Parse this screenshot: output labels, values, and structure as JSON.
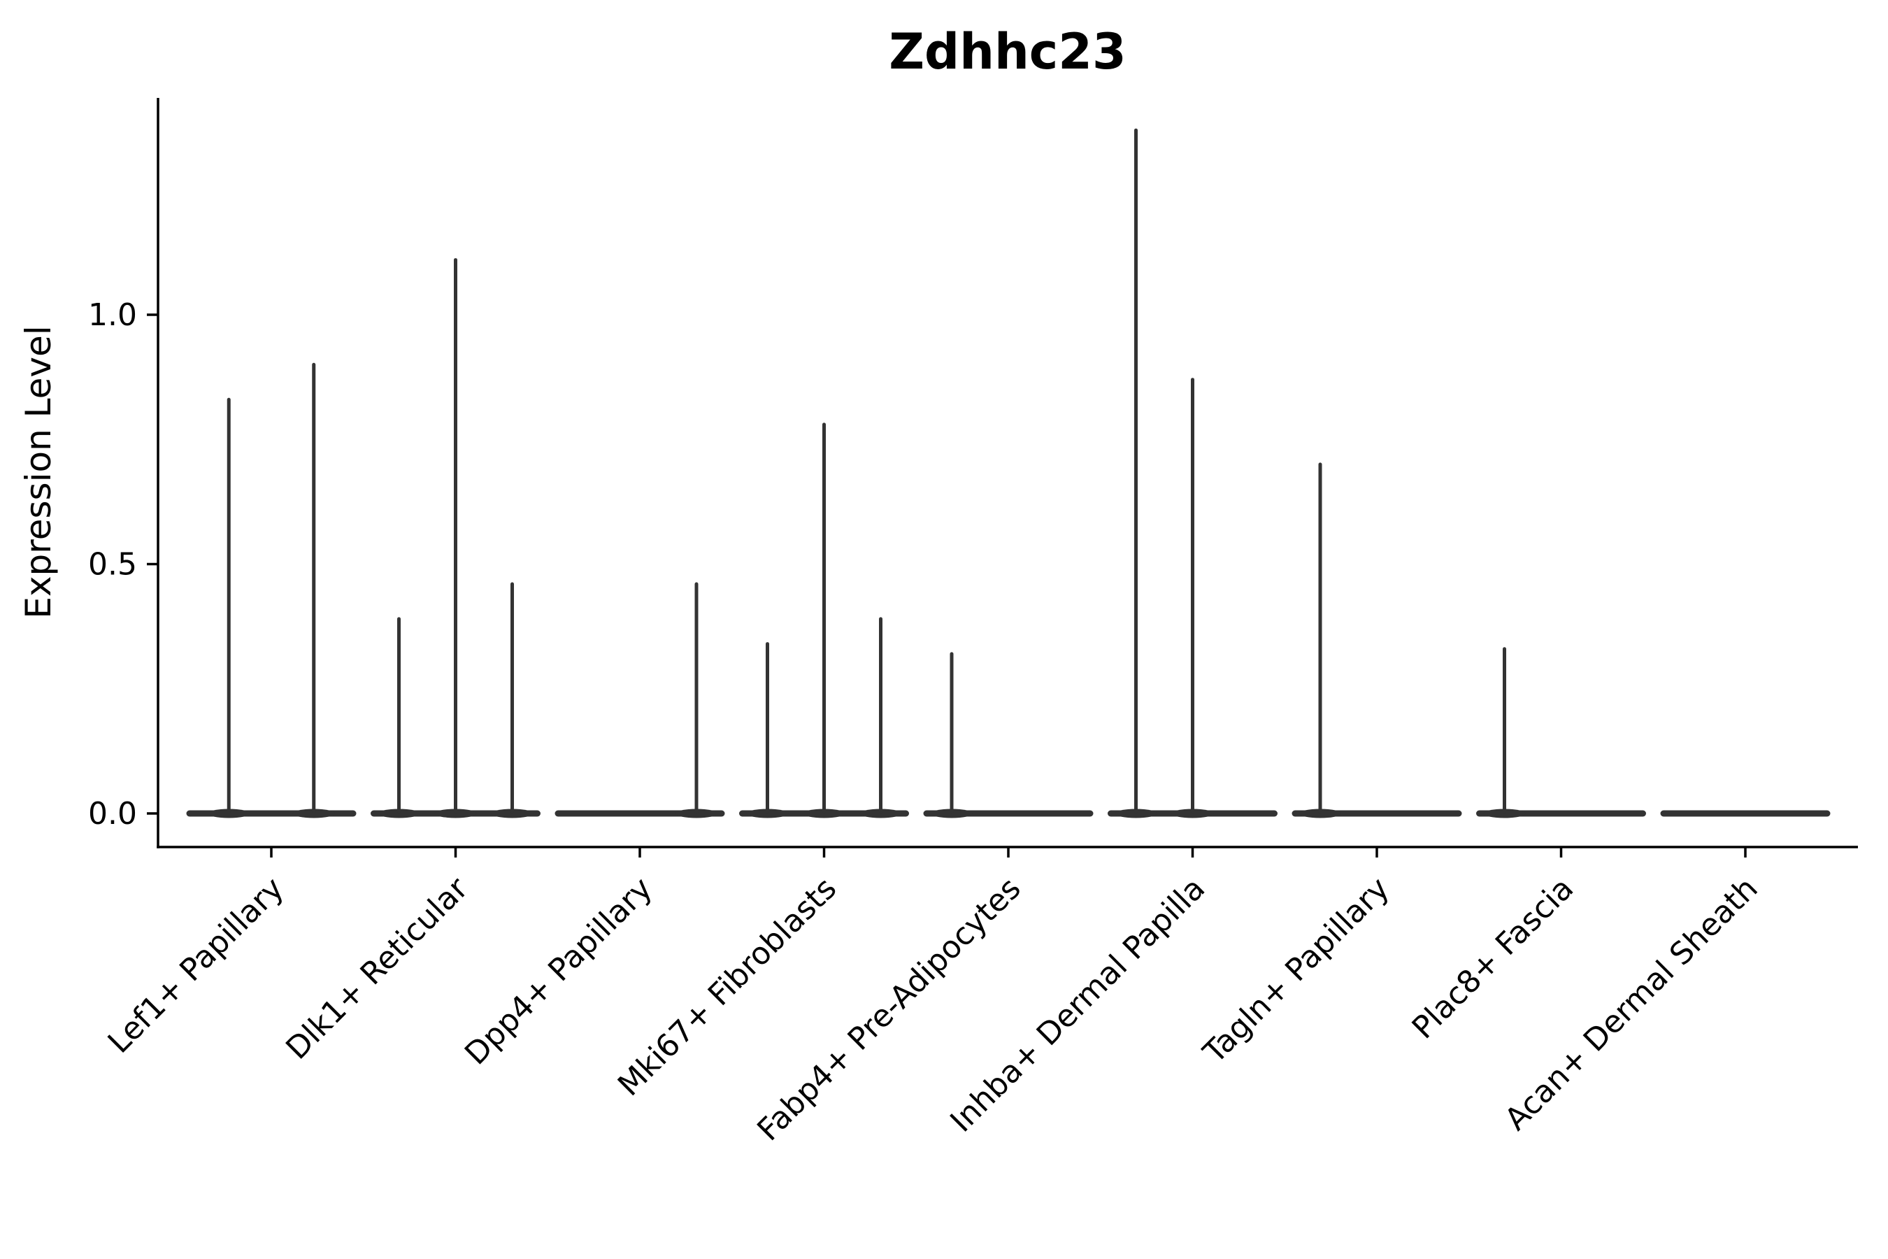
{
  "page": {
    "background": "#ffffff"
  },
  "chart_data": {
    "type": "violin",
    "title": "Zdhhc23",
    "xlabel": "",
    "ylabel": "Expression Level",
    "ytick_labels": [
      "0.0",
      "0.5",
      "1.0"
    ],
    "ytick_values": [
      0.0,
      0.5,
      1.0
    ],
    "ylim": [
      -0.07,
      1.44
    ],
    "grid": false,
    "legend": "none",
    "categories": [
      "Lef1+ Papillary",
      "Dlk1+ Reticular",
      "Dpp4+ Papillary",
      "Mki67+ Fibroblasts",
      "Fabp4+ Pre-Adipocytes",
      "Inhba+ Dermal Papilla",
      "Tagln+ Papillary",
      "Plac8+ Fascia",
      "Acan+ Dermal Sheath"
    ],
    "groups": [
      {
        "category": "Lef1+ Papillary",
        "violin_peaks": [
          0.83,
          0.9
        ]
      },
      {
        "category": "Dlk1+ Reticular",
        "violin_peaks": [
          0.39,
          1.11,
          0.46
        ]
      },
      {
        "category": "Dpp4+ Papillary",
        "violin_peaks": [
          0,
          0,
          0.46
        ]
      },
      {
        "category": "Mki67+ Fibroblasts",
        "violin_peaks": [
          0.34,
          0.78,
          0.39
        ]
      },
      {
        "category": "Fabp4+ Pre-Adipocytes",
        "violin_peaks": [
          0.32,
          0,
          0
        ]
      },
      {
        "category": "Inhba+ Dermal Papilla",
        "violin_peaks": [
          1.37,
          0.87,
          0
        ]
      },
      {
        "category": "Tagln+ Papillary",
        "violin_peaks": [
          0.7,
          0,
          0
        ]
      },
      {
        "category": "Plac8+ Fascia",
        "violin_peaks": [
          0.33,
          0,
          0
        ]
      },
      {
        "category": "Acan+ Dermal Sheath",
        "violin_peaks": [
          0,
          0,
          0
        ]
      }
    ],
    "colors": {
      "violin": "#333333",
      "axis": "#000000",
      "text": "#000000",
      "background": "#ffffff"
    }
  }
}
